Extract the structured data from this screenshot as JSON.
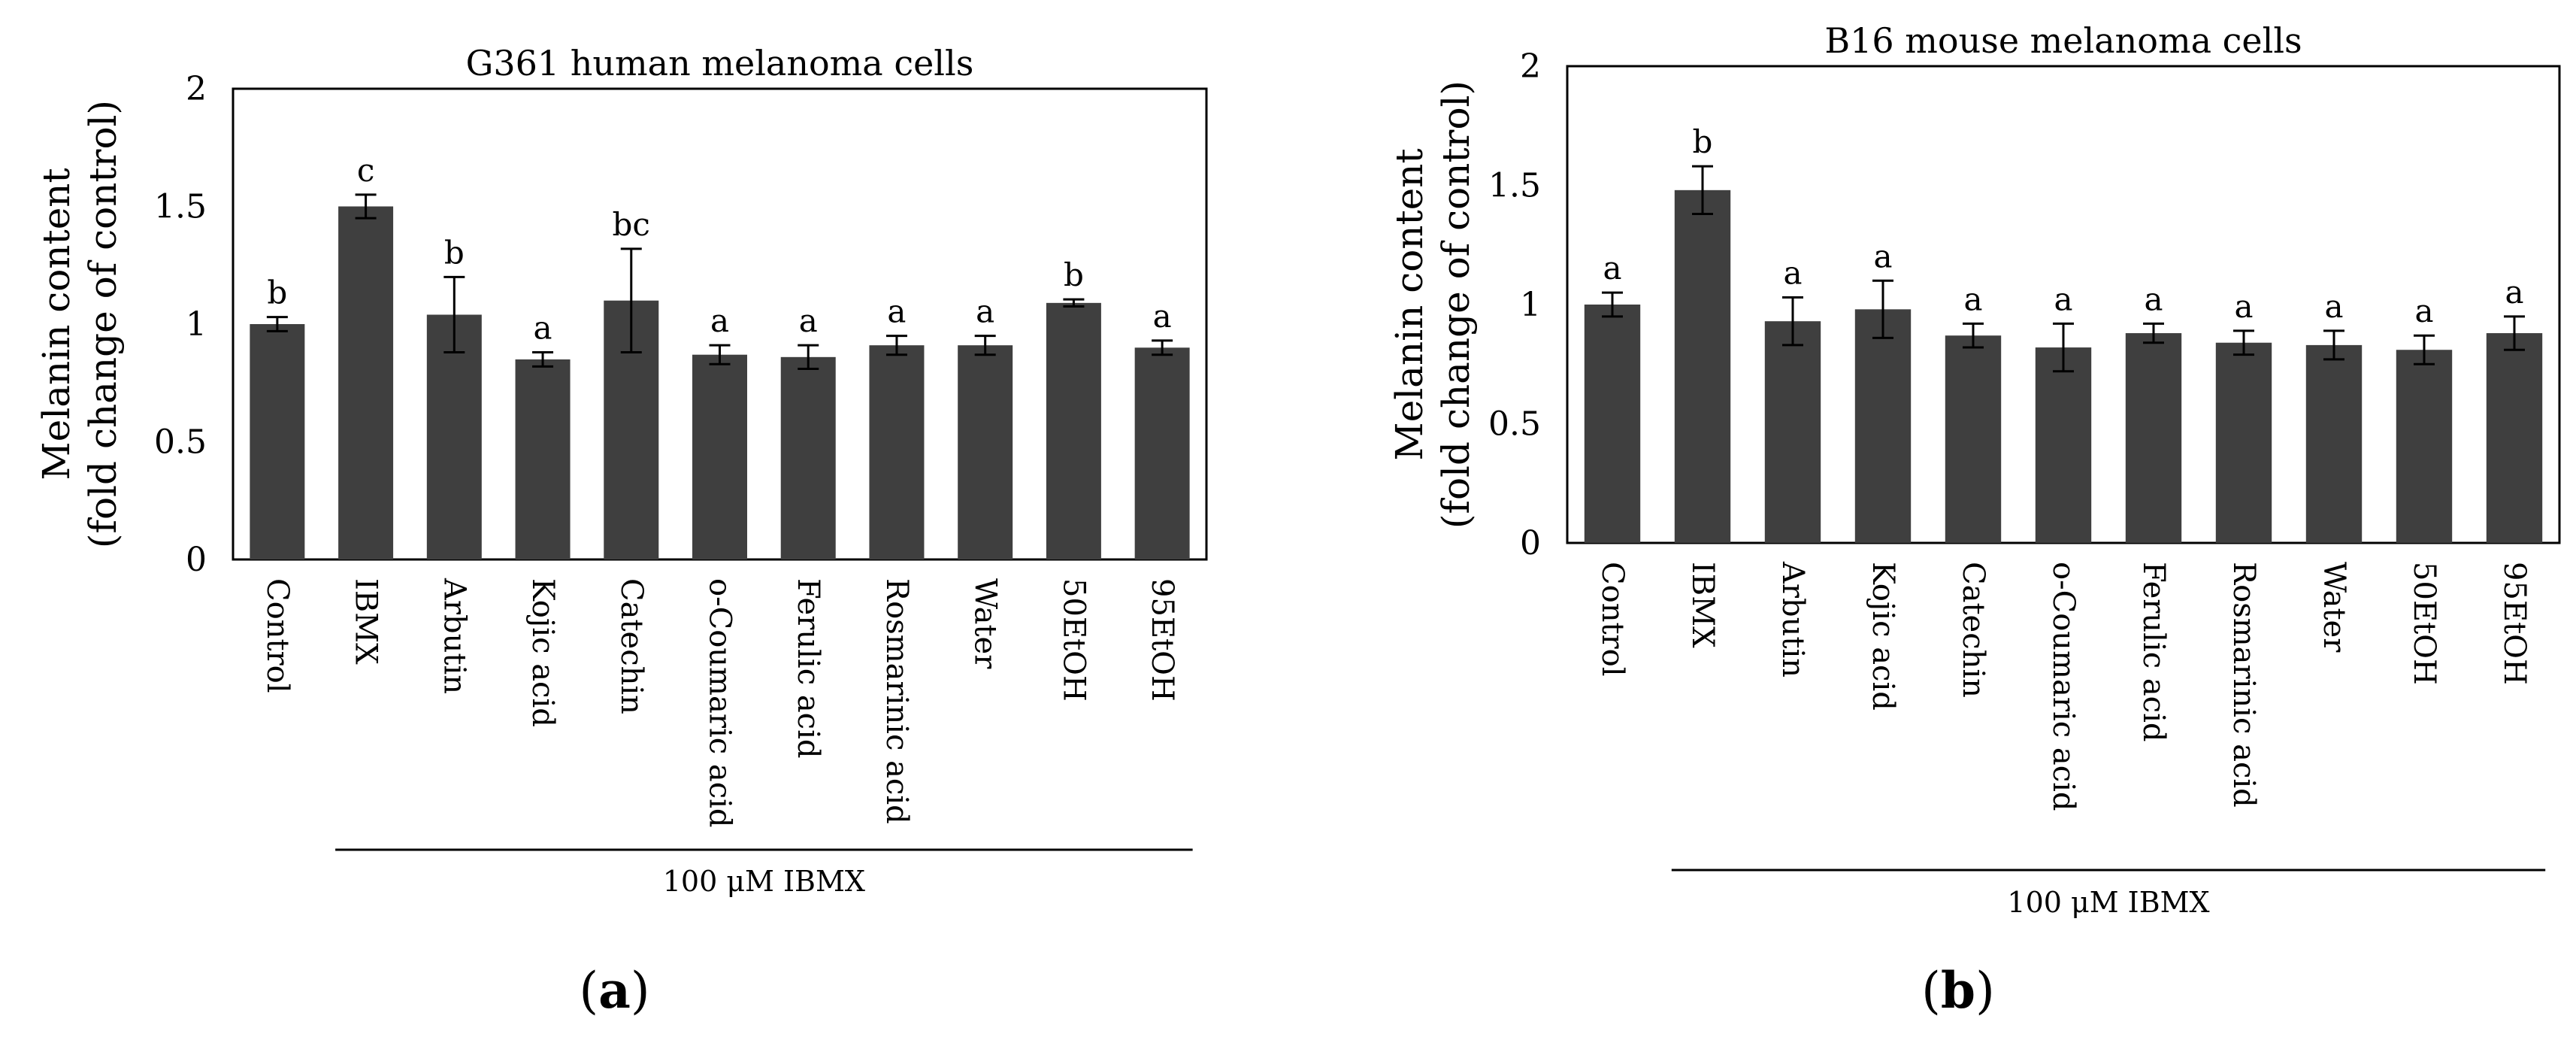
{
  "figure": {
    "treatment_label": "100 μM IBMX"
  },
  "chart_data": [
    {
      "type": "bar",
      "panel_label": "(a)",
      "panel_letter": "a",
      "title": "G361 human melanoma cells",
      "ylabel_line1": "Melanin content",
      "ylabel_line2": "(fold change of control)",
      "xlabel": "",
      "ylim": [
        0,
        2
      ],
      "yticks": [
        0,
        0.5,
        1,
        1.5,
        2
      ],
      "ytick_labels": [
        "0",
        "0.5",
        "1",
        "1.5",
        "2"
      ],
      "categories": [
        "Control",
        "IBMX",
        "Arbutin",
        "Kojic acid",
        "Catechin",
        "o-Coumaric acid",
        "Ferulic acid",
        "Rosmarinic acid",
        "Water",
        "50EtOH",
        "95EtOH"
      ],
      "values": [
        1.0,
        1.5,
        1.04,
        0.85,
        1.1,
        0.87,
        0.86,
        0.91,
        0.91,
        1.09,
        0.9
      ],
      "errors": [
        0.03,
        0.05,
        0.16,
        0.03,
        0.22,
        0.04,
        0.05,
        0.04,
        0.04,
        0.015,
        0.03
      ],
      "significance": [
        "b",
        "c",
        "b",
        "a",
        "bc",
        "a",
        "a",
        "a",
        "a",
        "b",
        "a"
      ],
      "bracket_label": "100 μM IBMX",
      "bracket_from": 1,
      "bracket_to": 10
    },
    {
      "type": "bar",
      "panel_label": "(b)",
      "panel_letter": "b",
      "title": "B16 mouse melanoma cells",
      "ylabel_line1": "Melanin content",
      "ylabel_line2": "(fold change of control)",
      "xlabel": "",
      "ylim": [
        0,
        2
      ],
      "yticks": [
        0,
        0.5,
        1,
        1.5,
        2
      ],
      "ytick_labels": [
        "0",
        "0.5",
        "1",
        "1.5",
        "2"
      ],
      "categories": [
        "Control",
        "IBMX",
        "Arbutin",
        "Kojic acid",
        "Catechin",
        "o-Coumaric acid",
        "Ferulic acid",
        "Rosmarinic acid",
        "Water",
        "50EtOH",
        "95EtOH"
      ],
      "values": [
        1.0,
        1.48,
        0.93,
        0.98,
        0.87,
        0.82,
        0.88,
        0.84,
        0.83,
        0.81,
        0.88
      ],
      "errors": [
        0.05,
        0.1,
        0.1,
        0.12,
        0.05,
        0.1,
        0.04,
        0.05,
        0.06,
        0.06,
        0.07
      ],
      "significance": [
        "a",
        "b",
        "a",
        "a",
        "a",
        "a",
        "a",
        "a",
        "a",
        "a",
        "a"
      ],
      "bracket_label": "100 μM IBMX",
      "bracket_from": 1,
      "bracket_to": 10
    }
  ]
}
